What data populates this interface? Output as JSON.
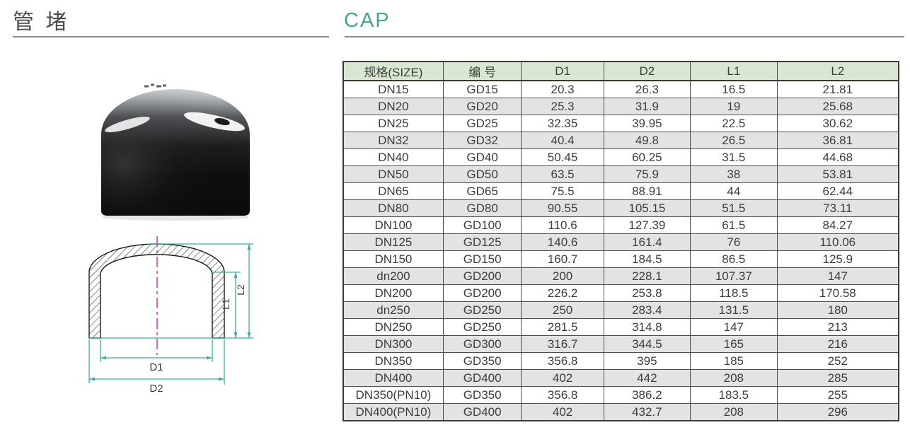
{
  "page": {
    "title_cn": "管 堵",
    "title_en": "CAP",
    "accent_green": "#42a78c",
    "rule_color": "#8c8c8c"
  },
  "drawing": {
    "labels": {
      "d1": "D1",
      "d2": "D2",
      "l1": "L1",
      "l2": "L2"
    },
    "colors": {
      "dimension_line": "#35b1a2",
      "centerline": "#e8247c",
      "outline": "#1a1a1a"
    }
  },
  "table": {
    "columns": [
      "规格(SIZE)",
      "编 号",
      "D1",
      "D2",
      "L1",
      "L2"
    ],
    "rows": [
      [
        "DN15",
        "GD15",
        "20.3",
        "26.3",
        "16.5",
        "21.81"
      ],
      [
        "DN20",
        "GD20",
        "25.3",
        "31.9",
        "19",
        "25.68"
      ],
      [
        "DN25",
        "GD25",
        "32.35",
        "39.95",
        "22.5",
        "30.62"
      ],
      [
        "DN32",
        "GD32",
        "40.4",
        "49.8",
        "26.5",
        "36.81"
      ],
      [
        "DN40",
        "GD40",
        "50.45",
        "60.25",
        "31.5",
        "44.68"
      ],
      [
        "DN50",
        "GD50",
        "63.5",
        "75.9",
        "38",
        "53.81"
      ],
      [
        "DN65",
        "GD65",
        "75.5",
        "88.91",
        "44",
        "62.44"
      ],
      [
        "DN80",
        "GD80",
        "90.55",
        "105.15",
        "51.5",
        "73.11"
      ],
      [
        "DN100",
        "GD100",
        "110.6",
        "127.39",
        "61.5",
        "84.27"
      ],
      [
        "DN125",
        "GD125",
        "140.6",
        "161.4",
        "76",
        "110.06"
      ],
      [
        "DN150",
        "GD150",
        "160.7",
        "184.5",
        "86.5",
        "125.9"
      ],
      [
        "dn200",
        "GD200",
        "200",
        "228.1",
        "107.37",
        "147"
      ],
      [
        "DN200",
        "GD200",
        "226.2",
        "253.8",
        "118.5",
        "170.58"
      ],
      [
        "dn250",
        "GD250",
        "250",
        "283.4",
        "131.5",
        "180"
      ],
      [
        "DN250",
        "GD250",
        "281.5",
        "314.8",
        "147",
        "213"
      ],
      [
        "DN300",
        "GD300",
        "316.7",
        "344.5",
        "165",
        "216"
      ],
      [
        "DN350",
        "GD350",
        "356.8",
        "395",
        "185",
        "252"
      ],
      [
        "DN400",
        "GD400",
        "402",
        "442",
        "208",
        "285"
      ],
      [
        "DN350(PN10)",
        "GD350",
        "356.8",
        "386.2",
        "183.5",
        "255"
      ],
      [
        "DN400(PN10)",
        "GD400",
        "402",
        "432.7",
        "208",
        "296"
      ]
    ],
    "colors": {
      "header_bg": "#d9e6d2",
      "alt_row_bg": "#e3e3e3",
      "border": "#4d4d4d"
    }
  }
}
